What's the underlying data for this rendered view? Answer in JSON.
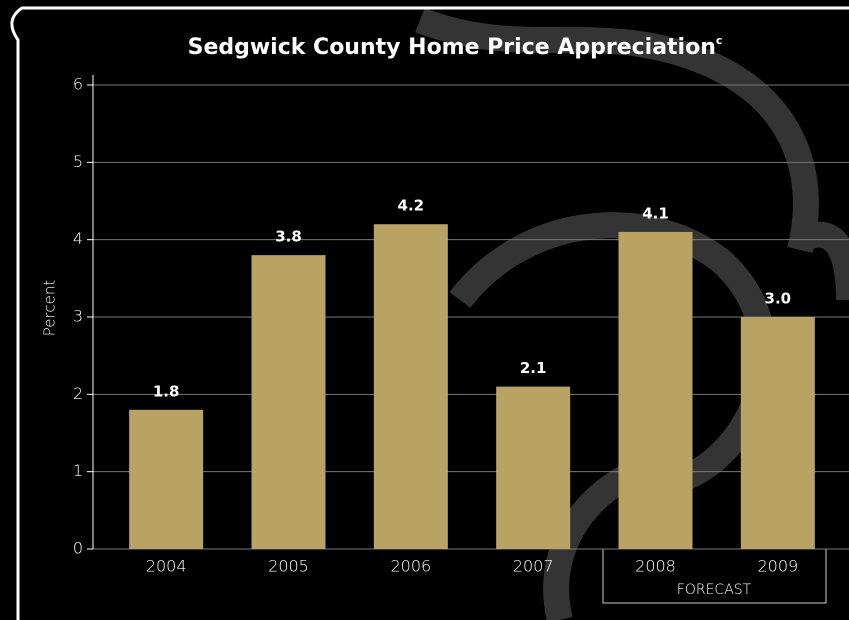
{
  "chart_data": {
    "type": "bar",
    "title": "Sedgwick County Home Price Appreciation",
    "title_note": "c",
    "y_label": "Percent",
    "categories": [
      "2004",
      "2005",
      "2006",
      "2007",
      "2008",
      "2009"
    ],
    "values": [
      1.8,
      3.8,
      4.2,
      2.1,
      4.1,
      3.0
    ],
    "value_labels": [
      "1.8",
      "3.8",
      "4.2",
      "2.1",
      "4.1",
      "3.0"
    ],
    "color": "#b8a264",
    "ylim": [
      0,
      6
    ],
    "yticks": [
      0,
      1,
      2,
      3,
      4,
      5,
      6
    ],
    "grid": true,
    "forecast_label": "FORECAST"
  }
}
